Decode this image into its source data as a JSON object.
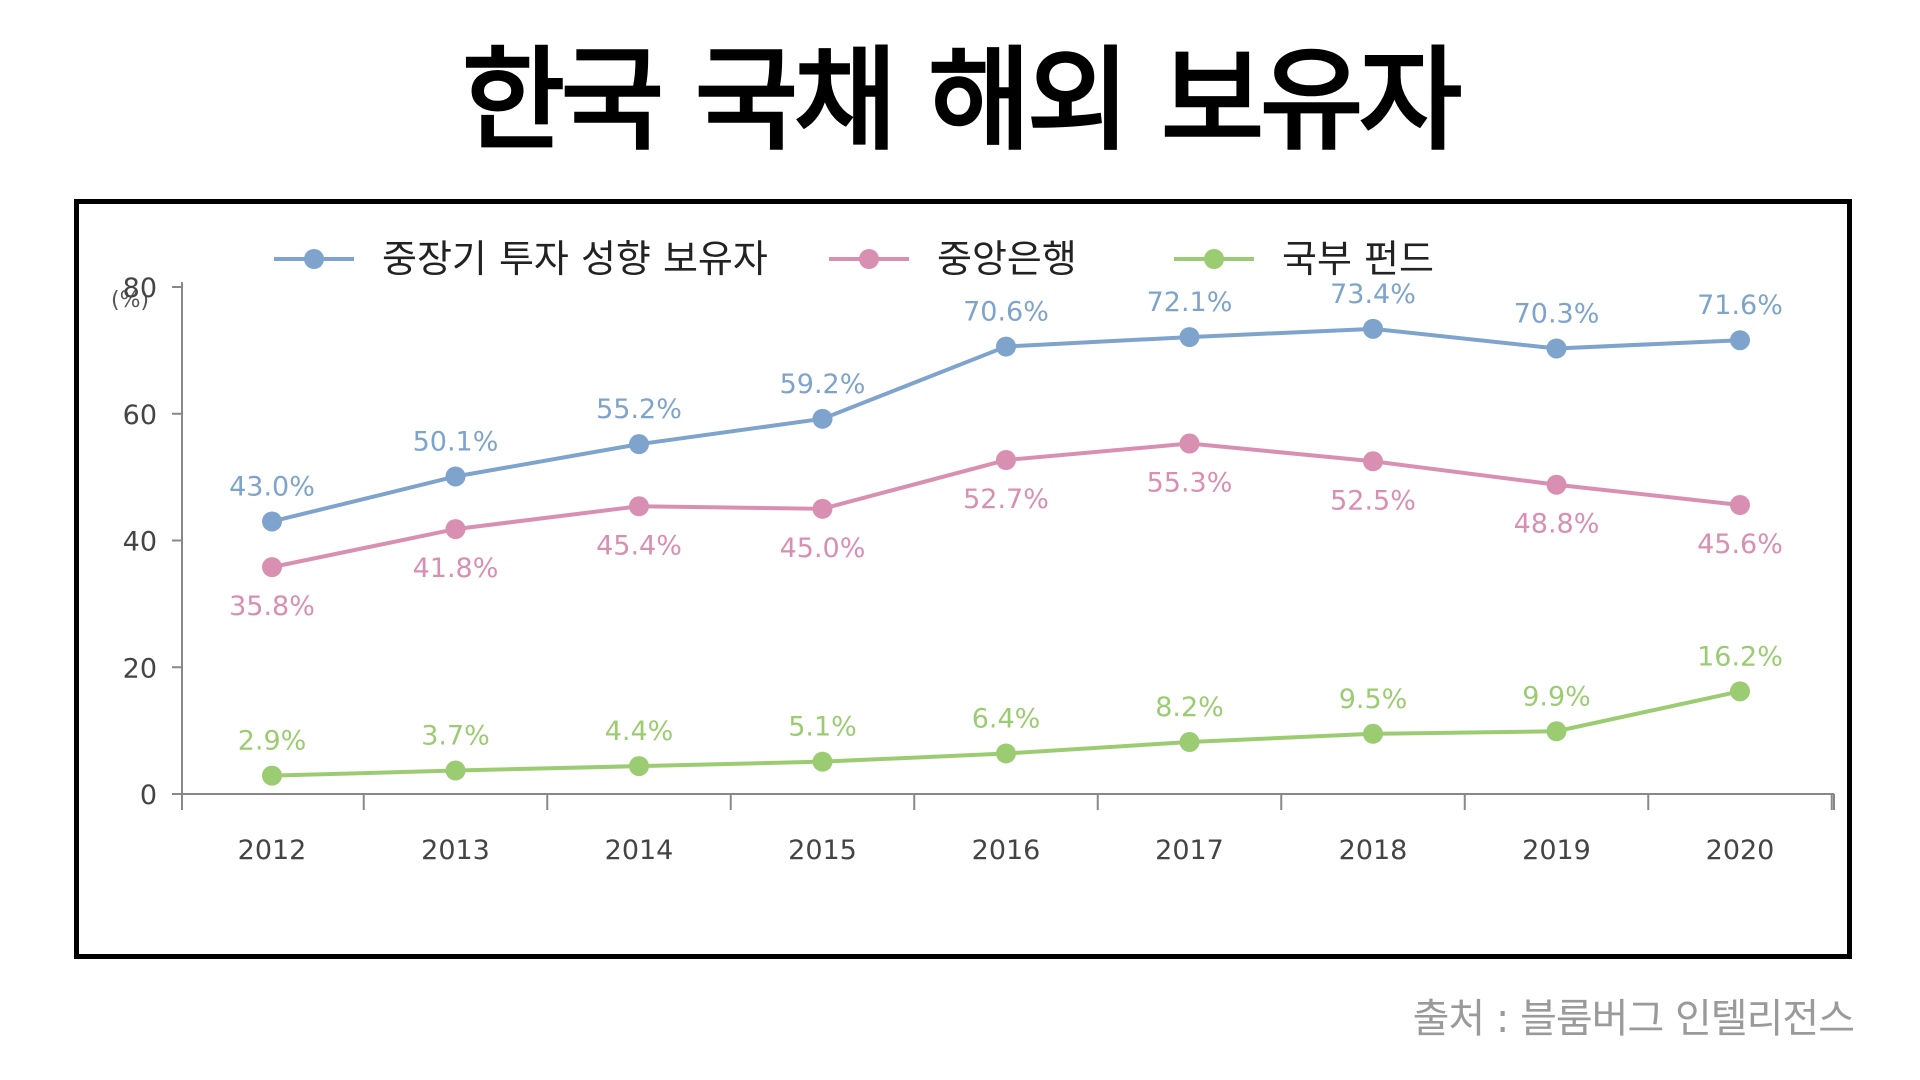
{
  "title": "한국 국채 해외 보유자",
  "source": "출처 : 블룸버그 인텔리전스",
  "chart_data": {
    "type": "line",
    "ylabel": "(%)",
    "ylim": [
      0,
      80
    ],
    "yticks": [
      "0",
      "20",
      "40",
      "60",
      "80"
    ],
    "categories": [
      "2012",
      "2013",
      "2014",
      "2015",
      "2016",
      "2017",
      "2018",
      "2019",
      "2020"
    ],
    "grid": false,
    "legend_position": "top",
    "series": [
      {
        "name": "중장기 투자 성향 보유자",
        "color": "#7ea3cc",
        "values": [
          43.0,
          50.1,
          55.2,
          59.2,
          70.6,
          72.1,
          73.4,
          70.3,
          71.6
        ],
        "labels": [
          "43.0%",
          "50.1%",
          "55.2%",
          "59.2%",
          "70.6%",
          "72.1%",
          "73.4%",
          "70.3%",
          "71.6%"
        ],
        "label_position": "above"
      },
      {
        "name": "중앙은행",
        "color": "#d98fb2",
        "values": [
          35.8,
          41.8,
          45.4,
          45.0,
          52.7,
          55.3,
          52.5,
          48.8,
          45.6
        ],
        "labels": [
          "35.8%",
          "41.8%",
          "45.4%",
          "45.0%",
          "52.7%",
          "55.3%",
          "52.5%",
          "48.8%",
          "45.6%"
        ],
        "label_position": "below"
      },
      {
        "name": "국부 펀드",
        "color": "#9ccc72",
        "values": [
          2.9,
          3.7,
          4.4,
          5.1,
          6.4,
          8.2,
          9.5,
          9.9,
          16.2
        ],
        "labels": [
          "2.9%",
          "3.7%",
          "4.4%",
          "5.1%",
          "6.4%",
          "8.2%",
          "9.5%",
          "9.9%",
          "16.2%"
        ],
        "label_position": "above"
      }
    ]
  }
}
